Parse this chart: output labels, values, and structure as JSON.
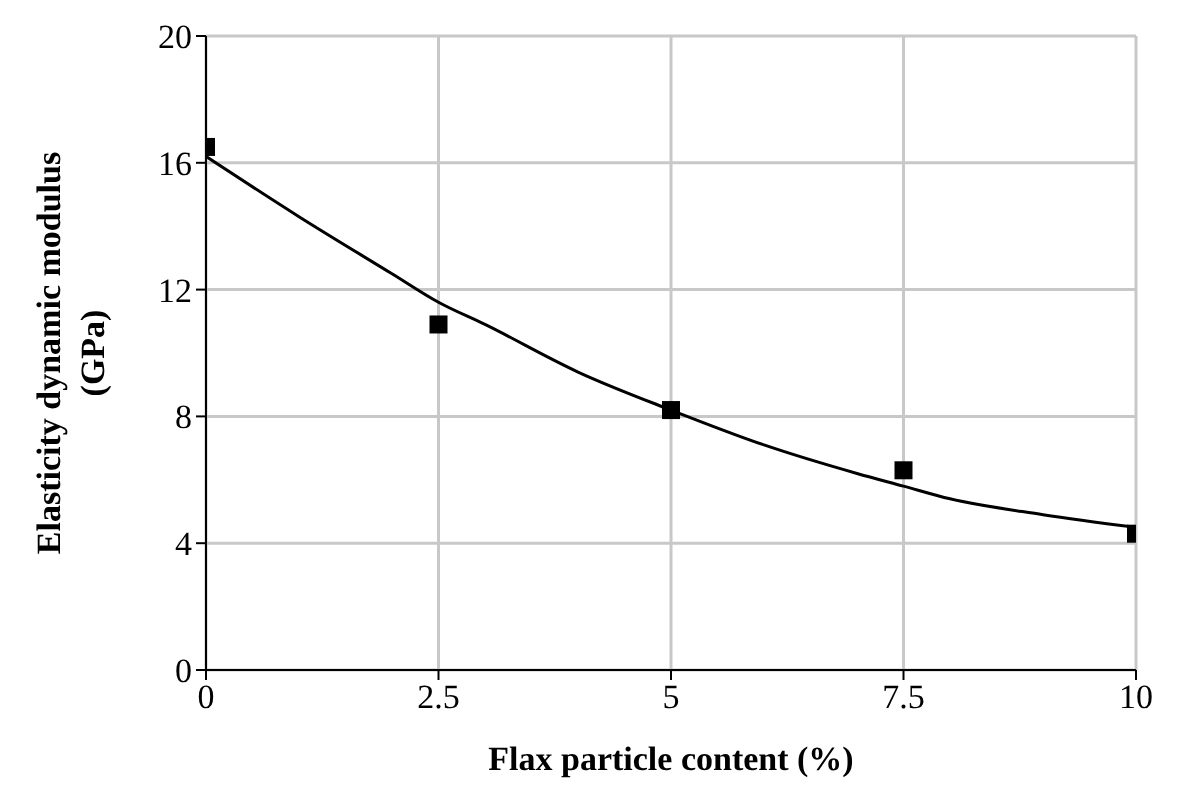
{
  "chart_data": {
    "type": "scatter",
    "xlabel": "Flax particle content (%)",
    "ylabel": "Elasticity dynamic modulus (GPa)",
    "xlim": [
      0,
      10
    ],
    "xticks": [
      0,
      2.5,
      5,
      7.5,
      10
    ],
    "ylim": [
      0,
      20
    ],
    "yticks": [
      0,
      4,
      8,
      12,
      16,
      20
    ],
    "grid": true,
    "marker": "square",
    "series": [
      {
        "color": "#000000",
        "x": [
          0,
          2.5,
          5,
          7.5,
          10
        ],
        "values": [
          16.5,
          10.9,
          8.2,
          6.3,
          4.3
        ]
      },
      {
        "type": "line",
        "color": "#000000",
        "marker": "none",
        "line_style": "solid",
        "x": [
          0,
          1,
          2,
          2.5,
          3,
          4,
          5,
          6,
          7,
          7.5,
          8,
          9,
          10
        ],
        "values": [
          16.2,
          14.3,
          12.5,
          11.6,
          10.9,
          9.4,
          8.2,
          7.1,
          6.2,
          5.8,
          5.4,
          4.9,
          4.5
        ]
      }
    ]
  }
}
